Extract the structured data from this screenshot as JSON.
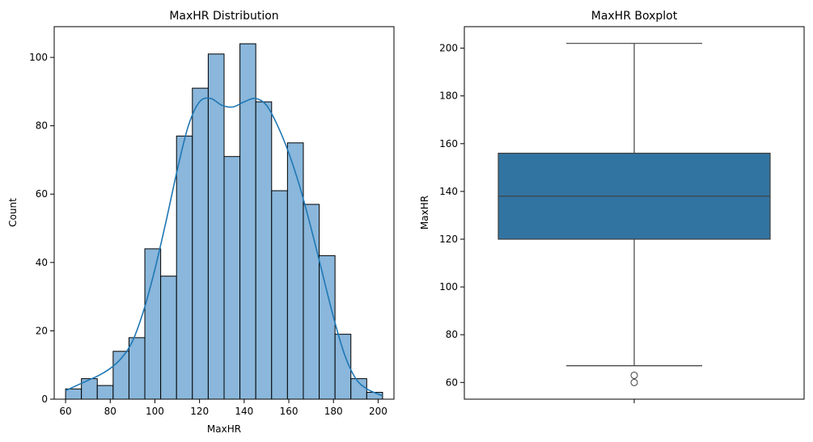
{
  "chart_data": [
    {
      "type": "bar",
      "subtype": "histogram",
      "title": "MaxHR Distribution",
      "xlabel": "MaxHR",
      "ylabel": "Count",
      "xlim": [
        54.9,
        207.1
      ],
      "ylim": [
        0,
        109
      ],
      "xticks": [
        60,
        80,
        100,
        120,
        140,
        160,
        180,
        200
      ],
      "yticks": [
        0,
        20,
        40,
        60,
        80,
        100
      ],
      "bin_width": 7.1,
      "bins": [
        {
          "x0": 60.0,
          "count": 3
        },
        {
          "x0": 67.1,
          "count": 6
        },
        {
          "x0": 74.2,
          "count": 4
        },
        {
          "x0": 81.3,
          "count": 14
        },
        {
          "x0": 88.4,
          "count": 18
        },
        {
          "x0": 95.5,
          "count": 44
        },
        {
          "x0": 102.6,
          "count": 36
        },
        {
          "x0": 109.7,
          "count": 77
        },
        {
          "x0": 116.8,
          "count": 91
        },
        {
          "x0": 123.9,
          "count": 101
        },
        {
          "x0": 131.0,
          "count": 71
        },
        {
          "x0": 138.1,
          "count": 104
        },
        {
          "x0": 145.2,
          "count": 87
        },
        {
          "x0": 152.3,
          "count": 61
        },
        {
          "x0": 159.4,
          "count": 75
        },
        {
          "x0": 166.5,
          "count": 57
        },
        {
          "x0": 173.6,
          "count": 42
        },
        {
          "x0": 180.7,
          "count": 19
        },
        {
          "x0": 187.8,
          "count": 6
        },
        {
          "x0": 194.9,
          "count": 2
        }
      ],
      "kde": {
        "x": [
          60,
          65,
          70,
          75,
          80,
          85,
          90,
          95,
          100,
          105,
          110,
          115,
          120,
          125,
          130,
          135,
          140,
          145,
          150,
          155,
          160,
          165,
          170,
          175,
          180,
          185,
          190,
          195,
          200,
          202
        ],
        "y": [
          2.5,
          4,
          5.5,
          7,
          9,
          12,
          17,
          26,
          38,
          52,
          67,
          80,
          87,
          88,
          86,
          85.5,
          87,
          88,
          86,
          80,
          72,
          62,
          50,
          37,
          24,
          13,
          6,
          3,
          1.5,
          1
        ]
      },
      "bar_color": "#8ab7db",
      "edge_color": "#000000",
      "line_color": "#1f77b4"
    },
    {
      "type": "boxplot",
      "title": "MaxHR Boxplot",
      "xlabel": "",
      "ylabel": "MaxHR",
      "ylim": [
        53,
        209
      ],
      "yticks": [
        60,
        80,
        100,
        120,
        140,
        160,
        180,
        200
      ],
      "box": {
        "whisker_low": 67,
        "q1": 120,
        "median": 138,
        "q3": 156,
        "whisker_high": 202,
        "outliers": [
          60,
          63
        ]
      },
      "box_color": "#3274a1",
      "line_color": "#3f3f3f"
    }
  ]
}
